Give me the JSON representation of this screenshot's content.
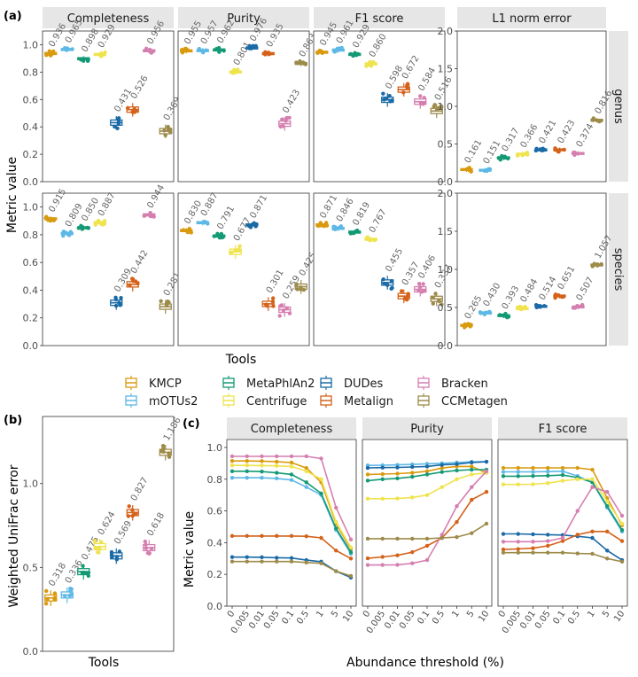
{
  "tools": [
    "KMCP",
    "mOTUs2",
    "MetaPhlAn2",
    "Centrifuge",
    "DUDes",
    "Metalign",
    "Bracken",
    "CCMetagen"
  ],
  "colors": {
    "KMCP": "#d99a0f",
    "mOTUs2": "#5db8e6",
    "MetaPhlAn2": "#139a75",
    "Centrifuge": "#efe34e",
    "DUDes": "#1a6aa6",
    "Metalign": "#d4621a",
    "Bracken": "#d57fb0",
    "CCMetagen": "#9d8b4a",
    "strip_bg": "#e6e6e6",
    "grid": "#ebebeb",
    "axis": "#4d4d4d"
  },
  "panel_labels": {
    "a": "(a)",
    "b": "(b)",
    "c": "(c)"
  },
  "chart_data": [
    {
      "id": "a",
      "type": "box",
      "ylabel": "Metric value",
      "xlabel": "Tools",
      "metrics": [
        "Completeness",
        "Purity",
        "F1 score",
        "L1 norm error"
      ],
      "ranks": [
        "genus",
        "species"
      ],
      "ylim_main": [
        0,
        1.0
      ],
      "yticks_main": [
        "0.0",
        "0.2",
        "0.4",
        "0.6",
        "0.8",
        "1.0"
      ],
      "ylim_l1": [
        0,
        2.0
      ],
      "yticks_l1": [
        "0.0",
        "0.5",
        "1.0",
        "1.5",
        "2.0"
      ],
      "values": {
        "genus": {
          "Completeness": [
            0.936,
            0.965,
            0.898,
            0.929,
            0.431,
            0.526,
            0.956,
            0.369
          ],
          "Purity": [
            0.955,
            0.957,
            0.962,
            0.801,
            0.976,
            0.935,
            0.423,
            0.863
          ],
          "F1 score": [
            0.945,
            0.961,
            0.929,
            0.86,
            0.598,
            0.672,
            0.584,
            0.516
          ],
          "L1 norm error": [
            0.161,
            0.151,
            0.317,
            0.366,
            0.421,
            0.423,
            0.374,
            0.816
          ]
        },
        "species": {
          "Completeness": [
            0.915,
            0.809,
            0.85,
            0.887,
            0.309,
            0.442,
            0.944,
            0.281
          ],
          "Purity": [
            0.83,
            0.887,
            0.791,
            0.677,
            0.871,
            0.301,
            0.259,
            0.425
          ],
          "F1 score": [
            0.871,
            0.846,
            0.819,
            0.767,
            0.455,
            0.357,
            0.406,
            0.337
          ],
          "L1 norm error": [
            0.265,
            0.43,
            0.393,
            0.484,
            0.514,
            0.651,
            0.507,
            1.057
          ]
        }
      },
      "labels": {
        "genus": {
          "Completeness": [
            "0.936",
            "0.965",
            "0.898",
            "0.929",
            "0.431",
            "0.526",
            "0.956",
            "0.369"
          ],
          "Purity": [
            "0.955",
            "0.957",
            "0.962",
            "0.801",
            "0.976",
            "0.935",
            "0.423",
            "0.863"
          ],
          "F1 score": [
            "0.945",
            "0.961",
            "0.929",
            "0.860",
            "0.598",
            "0.672",
            "0.584",
            "0.516"
          ],
          "L1 norm error": [
            "0.161",
            "0.151",
            "0.317",
            "0.366",
            "0.421",
            "0.423",
            "0.374",
            "0.816"
          ]
        },
        "species": {
          "Completeness": [
            "0.915",
            "0.809",
            "0.850",
            "0.887",
            "0.309",
            "0.442",
            "0.944",
            "0.281"
          ],
          "Purity": [
            "0.830",
            "0.887",
            "0.791",
            "0.677",
            "0.871",
            "0.301",
            "0.259",
            "0.425"
          ],
          "F1 score": [
            "0.871",
            "0.846",
            "0.819",
            "0.767",
            "0.455",
            "0.357",
            "0.406",
            "0.337"
          ],
          "L1 norm error": [
            "0.265",
            "0.430",
            "0.393",
            "0.484",
            "0.514",
            "0.651",
            "0.507",
            "1.057"
          ]
        }
      }
    },
    {
      "id": "b",
      "type": "box",
      "ylabel": "Weighted UniFrac error",
      "xlabel": "Tools",
      "ylim": [
        0,
        1.4
      ],
      "yticks": [
        "0.0",
        "0.5",
        "1.0"
      ],
      "values": [
        0.318,
        0.336,
        0.475,
        0.624,
        0.569,
        0.827,
        0.618,
        1.186
      ],
      "labels": [
        "0.318",
        "0.336",
        "0.475",
        "0.624",
        "0.569",
        "0.827",
        "0.618",
        "1.186"
      ]
    },
    {
      "id": "c",
      "type": "line",
      "ylabel": "Metric value",
      "xlabel": "Abundance threshold (%)",
      "metrics": [
        "Completeness",
        "Purity",
        "F1 score"
      ],
      "x": [
        "0",
        "0.005",
        "0.01",
        "0.05",
        "0.1",
        "0.5",
        "1",
        "5",
        "10"
      ],
      "xtick_labels": [
        "0",
        "0.005",
        "0.01",
        "0.05",
        "0.1",
        "0.5",
        "1",
        "5",
        "10"
      ],
      "ylim": [
        0,
        1.0
      ],
      "yticks": [
        "0.0",
        "0.2",
        "0.4",
        "0.6",
        "0.8",
        "1.0"
      ],
      "series": {
        "Completeness": {
          "KMCP": [
            0.915,
            0.915,
            0.914,
            0.91,
            0.905,
            0.87,
            0.78,
            0.52,
            0.36
          ],
          "mOTUs2": [
            0.809,
            0.809,
            0.809,
            0.805,
            0.795,
            0.75,
            0.7,
            0.48,
            0.33
          ],
          "MetaPhlAn2": [
            0.85,
            0.85,
            0.848,
            0.84,
            0.83,
            0.78,
            0.71,
            0.49,
            0.34
          ],
          "Centrifuge": [
            0.887,
            0.887,
            0.886,
            0.884,
            0.88,
            0.85,
            0.8,
            0.53,
            0.37
          ],
          "DUDes": [
            0.309,
            0.309,
            0.308,
            0.305,
            0.303,
            0.29,
            0.28,
            0.22,
            0.18
          ],
          "Metalign": [
            0.442,
            0.442,
            0.442,
            0.442,
            0.442,
            0.44,
            0.43,
            0.35,
            0.3
          ],
          "Bracken": [
            0.944,
            0.944,
            0.944,
            0.944,
            0.944,
            0.944,
            0.93,
            0.62,
            0.42
          ],
          "CCMetagen": [
            0.281,
            0.281,
            0.281,
            0.281,
            0.281,
            0.275,
            0.27,
            0.22,
            0.19
          ]
        },
        "Purity": {
          "KMCP": [
            0.83,
            0.832,
            0.835,
            0.84,
            0.85,
            0.87,
            0.88,
            0.88,
            0.84
          ],
          "mOTUs2": [
            0.887,
            0.888,
            0.89,
            0.893,
            0.897,
            0.9,
            0.905,
            0.91,
            0.91
          ],
          "MetaPhlAn2": [
            0.791,
            0.8,
            0.805,
            0.815,
            0.83,
            0.845,
            0.855,
            0.86,
            0.86
          ],
          "Centrifuge": [
            0.677,
            0.677,
            0.678,
            0.685,
            0.7,
            0.75,
            0.8,
            0.83,
            0.84
          ],
          "DUDes": [
            0.871,
            0.873,
            0.874,
            0.877,
            0.88,
            0.89,
            0.895,
            0.905,
            0.91
          ],
          "Metalign": [
            0.301,
            0.31,
            0.32,
            0.34,
            0.38,
            0.43,
            0.53,
            0.67,
            0.72
          ],
          "Bracken": [
            0.259,
            0.259,
            0.26,
            0.27,
            0.29,
            0.45,
            0.63,
            0.75,
            0.85
          ],
          "CCMetagen": [
            0.425,
            0.425,
            0.425,
            0.425,
            0.425,
            0.43,
            0.435,
            0.46,
            0.52
          ]
        },
        "F1 score": {
          "KMCP": [
            0.871,
            0.871,
            0.871,
            0.871,
            0.871,
            0.871,
            0.86,
            0.68,
            0.51
          ],
          "mOTUs2": [
            0.846,
            0.846,
            0.846,
            0.848,
            0.85,
            0.82,
            0.78,
            0.62,
            0.47
          ],
          "MetaPhlAn2": [
            0.819,
            0.819,
            0.82,
            0.822,
            0.826,
            0.81,
            0.78,
            0.63,
            0.48
          ],
          "Centrifuge": [
            0.767,
            0.767,
            0.768,
            0.775,
            0.79,
            0.8,
            0.8,
            0.66,
            0.52
          ],
          "DUDes": [
            0.455,
            0.455,
            0.453,
            0.45,
            0.448,
            0.44,
            0.43,
            0.35,
            0.29
          ],
          "Metalign": [
            0.357,
            0.36,
            0.365,
            0.38,
            0.41,
            0.45,
            0.47,
            0.47,
            0.41
          ],
          "Bracken": [
            0.406,
            0.406,
            0.406,
            0.41,
            0.43,
            0.6,
            0.75,
            0.72,
            0.57
          ],
          "CCMetagen": [
            0.337,
            0.337,
            0.337,
            0.337,
            0.337,
            0.332,
            0.33,
            0.3,
            0.28
          ]
        }
      }
    }
  ]
}
